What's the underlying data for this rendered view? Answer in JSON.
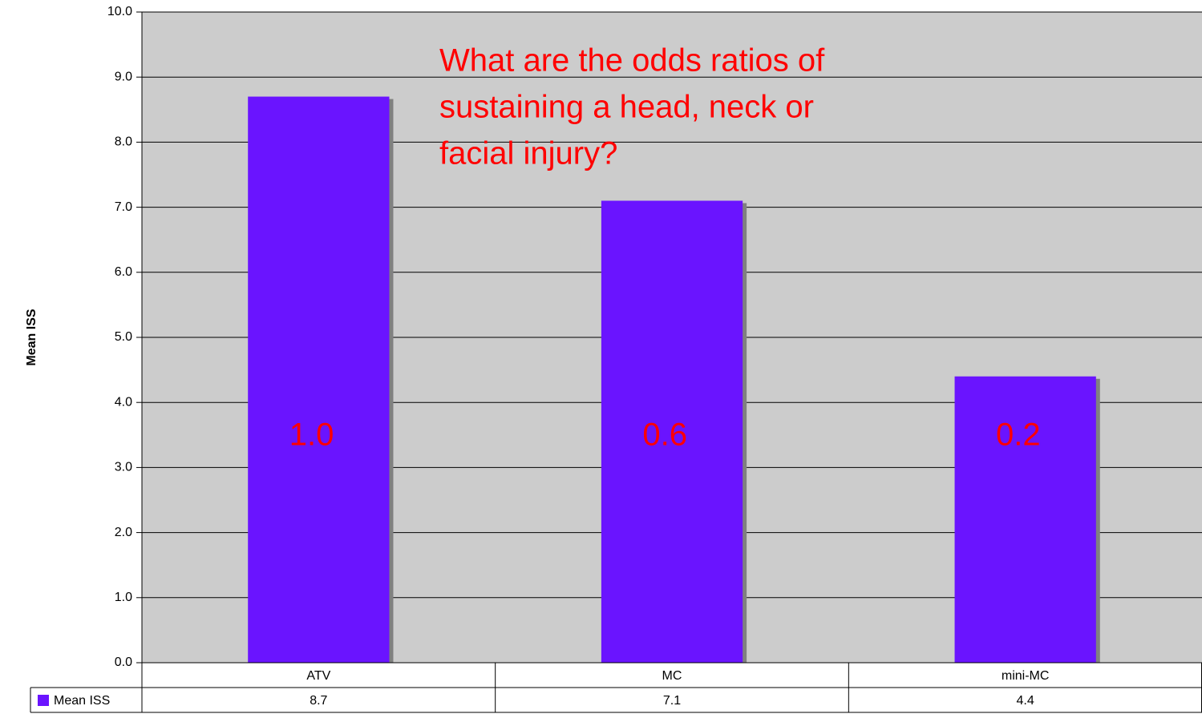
{
  "chart_data": {
    "type": "bar",
    "ylabel": "Mean ISS",
    "categories": [
      "ATV",
      "MC",
      "mini-MC"
    ],
    "series": [
      {
        "name": "Mean ISS",
        "color": "#6a14ff",
        "values": [
          8.7,
          7.1,
          4.4
        ]
      }
    ],
    "ylim": [
      0,
      10
    ],
    "yticks": [
      {
        "value": 0,
        "label": "0.0"
      },
      {
        "value": 1,
        "label": "1.0"
      },
      {
        "value": 2,
        "label": "2.0"
      },
      {
        "value": 3,
        "label": "3.0"
      },
      {
        "value": 4,
        "label": "4.0"
      },
      {
        "value": 5,
        "label": "5.0"
      },
      {
        "value": 6,
        "label": "6.0"
      },
      {
        "value": 7,
        "label": "7.0"
      },
      {
        "value": 8,
        "label": "8.0"
      },
      {
        "value": 9,
        "label": "9.0"
      },
      {
        "value": 10,
        "label": "10.0"
      }
    ],
    "grid": true,
    "annotation_lines": [
      "What are the odds ratios of",
      "sustaining a head, neck or",
      "facial injury?"
    ],
    "bar_annotations": [
      "1.0",
      "0.6",
      "0.2"
    ]
  }
}
